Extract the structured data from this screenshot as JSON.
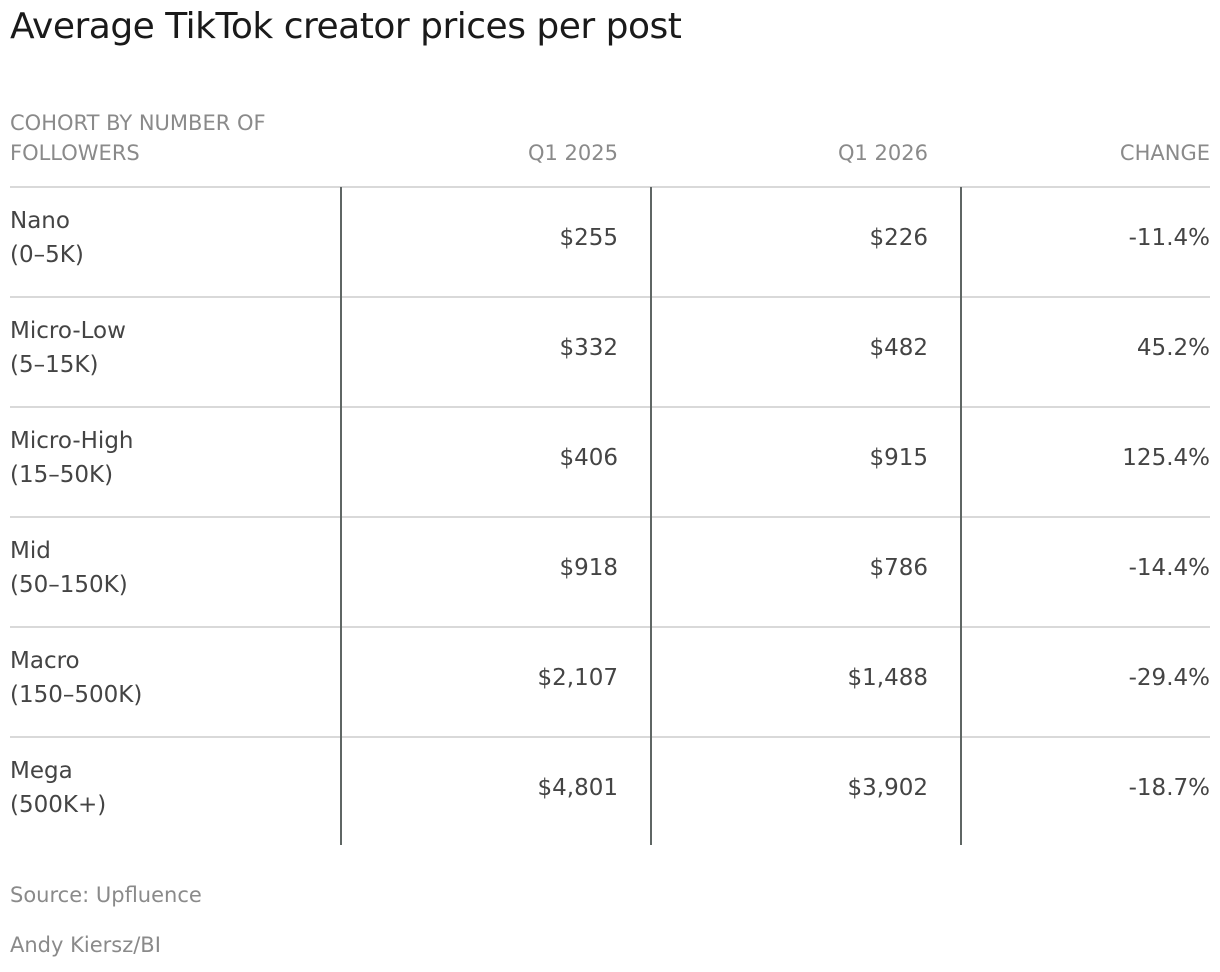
{
  "header": {
    "title": "Average TikTok creator prices per post"
  },
  "table": {
    "columns": [
      "COHORT BY NUMBER OF FOLLOWERS",
      "Q1 2025",
      "Q1 2026",
      "CHANGE"
    ],
    "rows": [
      {
        "name": "Nano",
        "range": "(0–5K)",
        "cells": [
          "$255",
          "$226",
          "-11.4%"
        ]
      },
      {
        "name": "Micro-Low",
        "range": "(5–15K)",
        "cells": [
          "$332",
          "$482",
          "45.2%"
        ]
      },
      {
        "name": "Micro-High",
        "range": "(15–50K)",
        "cells": [
          "$406",
          "$915",
          "125.4%"
        ]
      },
      {
        "name": "Mid",
        "range": "(50–150K)",
        "cells": [
          "$918",
          "$786",
          "-14.4%"
        ]
      },
      {
        "name": "Macro",
        "range": "(150–500K)",
        "cells": [
          "$2,107",
          "$1,488",
          "-29.4%"
        ]
      },
      {
        "name": "Mega",
        "range": "(500K+)",
        "cells": [
          "$4,801",
          "$3,902",
          "-18.7%"
        ]
      }
    ]
  },
  "footer": {
    "source": "Source: Upfluence",
    "credit": "Andy Kiersz/BI"
  }
}
